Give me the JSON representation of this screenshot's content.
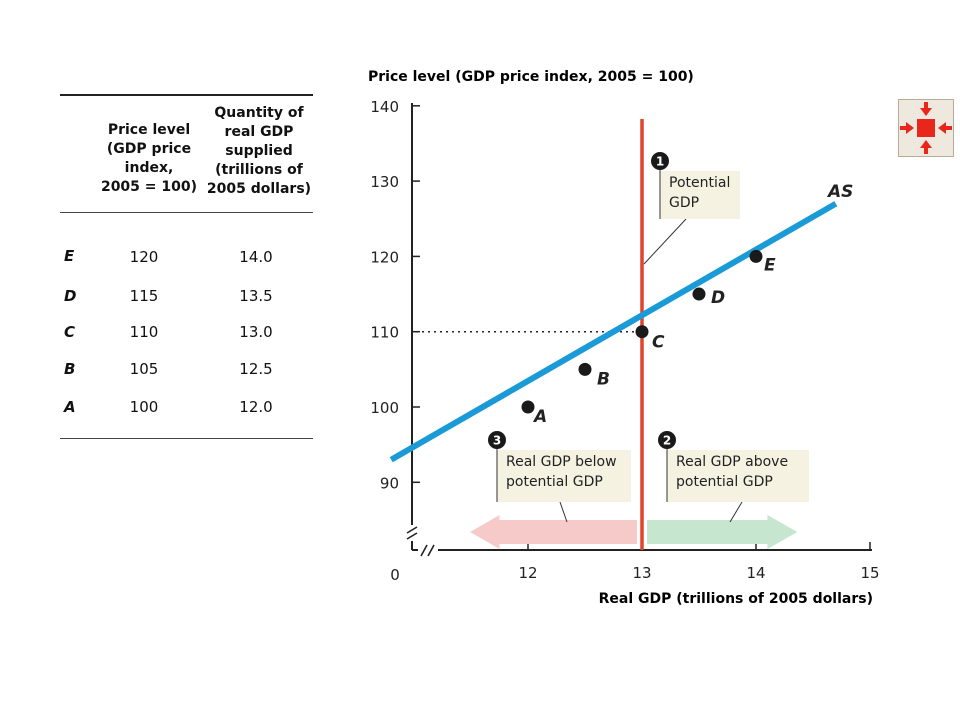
{
  "table": {
    "col1_header": [
      "Price level",
      "(GDP price",
      "index,",
      "2005 = 100)"
    ],
    "col2_header": [
      "Quantity of",
      "real GDP",
      "supplied",
      "(trillions of",
      "2005 dollars)"
    ],
    "rows": [
      {
        "label": "E",
        "price": "120",
        "qty": "14.0"
      },
      {
        "label": "D",
        "price": "115",
        "qty": "13.5"
      },
      {
        "label": "C",
        "price": "110",
        "qty": "13.0"
      },
      {
        "label": "B",
        "price": "105",
        "qty": "12.5"
      },
      {
        "label": "A",
        "price": "100",
        "qty": "12.0"
      }
    ]
  },
  "chart_data": {
    "type": "line",
    "ylabel": "Price level (GDP price index, 2005 = 100)",
    "xlabel": "Real GDP (trillions of 2005 dollars)",
    "x_ticks": [
      "12",
      "13",
      "14",
      "15"
    ],
    "y_ticks": [
      "90",
      "100",
      "110",
      "120",
      "130",
      "140"
    ],
    "origin_label": "0",
    "xlim": [
      11.0,
      15.0
    ],
    "ylim": [
      85,
      140
    ],
    "series": [
      {
        "name": "AS",
        "x": [
          10.8,
          14.7
        ],
        "y": [
          93,
          127
        ]
      }
    ],
    "points": [
      {
        "label": "A",
        "x": 12.0,
        "y": 100
      },
      {
        "label": "B",
        "x": 12.5,
        "y": 105
      },
      {
        "label": "C",
        "x": 13.0,
        "y": 110
      },
      {
        "label": "D",
        "x": 13.5,
        "y": 115
      },
      {
        "label": "E",
        "x": 14.0,
        "y": 120
      }
    ],
    "potential_gdp": 13.0,
    "reference_price": 110,
    "annotations": [
      {
        "number": "1",
        "lines": [
          "Potential",
          "GDP"
        ]
      },
      {
        "number": "2",
        "lines": [
          "Real GDP above",
          "potential GDP"
        ]
      },
      {
        "number": "3",
        "lines": [
          "Real GDP below",
          "potential GDP"
        ]
      }
    ],
    "grid": false,
    "colors": {
      "as_curve": "#1a9ad6",
      "potential_line": "#e0442a",
      "arrow_left": "#f7caca",
      "arrow_right": "#c7e6cf",
      "points": "#1a1a1a",
      "label_box": "#f6f2e2"
    }
  },
  "nav": {
    "icon": "collapse-arrows-icon",
    "color": "#e8261c"
  }
}
